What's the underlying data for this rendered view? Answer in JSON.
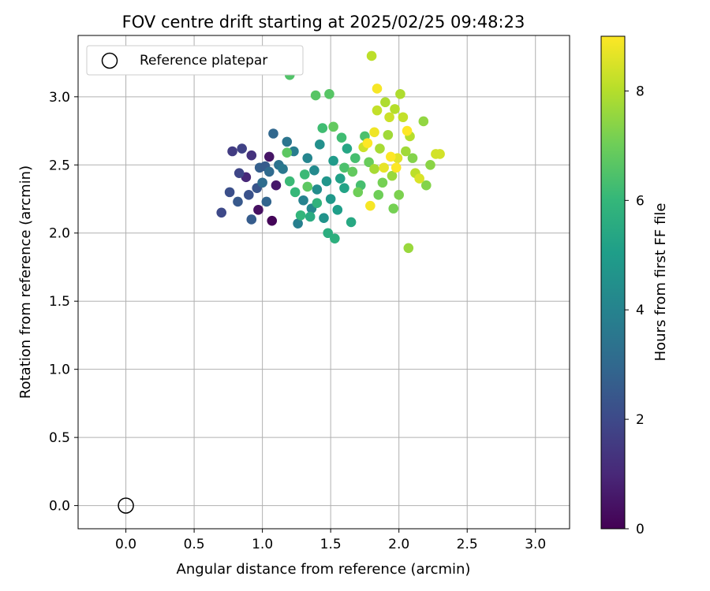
{
  "chart_data": {
    "type": "scatter",
    "title": "FOV centre drift starting at 2025/02/25 09:48:23",
    "xlabel": "Angular distance from reference (arcmin)",
    "ylabel": "Rotation from reference (arcmin)",
    "xlim": [
      -0.35,
      3.25
    ],
    "ylim": [
      -0.17,
      3.45
    ],
    "xticks": [
      "0.0",
      "0.5",
      "1.0",
      "1.5",
      "2.0",
      "2.5",
      "3.0"
    ],
    "yticks": [
      "0.0",
      "0.5",
      "1.0",
      "1.5",
      "2.0",
      "2.5",
      "3.0"
    ],
    "grid": true,
    "legend": {
      "placement": "upper-left",
      "entries": [
        "Reference platepar"
      ]
    },
    "reference": {
      "x": 0.0,
      "y": 0.0,
      "marker": "hollow-circle"
    },
    "colorbar": {
      "label": "Hours from first FF file",
      "range": [
        0,
        9
      ],
      "ticks": [
        "0",
        "2",
        "4",
        "6",
        "8"
      ],
      "colormap": "viridis",
      "colors": [
        "#440154",
        "#482878",
        "#3e4989",
        "#31688e",
        "#26828e",
        "#1f9e89",
        "#35b779",
        "#6ece58",
        "#b5de2b",
        "#fde725"
      ]
    },
    "series": [
      {
        "points": [
          [
            1.07,
            2.09,
            0.1
          ],
          [
            0.97,
            2.17,
            0.4
          ],
          [
            1.1,
            2.35,
            0.6
          ],
          [
            1.05,
            2.56,
            0.5
          ],
          [
            0.88,
            2.41,
            1.0
          ],
          [
            0.92,
            2.57,
            1.3
          ],
          [
            0.78,
            2.6,
            1.6
          ],
          [
            0.83,
            2.44,
            1.9
          ],
          [
            0.85,
            2.62,
            1.8
          ],
          [
            0.7,
            2.15,
            2.0
          ],
          [
            0.76,
            2.3,
            2.2
          ],
          [
            0.82,
            2.23,
            2.5
          ],
          [
            0.9,
            2.28,
            2.3
          ],
          [
            0.96,
            2.33,
            2.4
          ],
          [
            0.92,
            2.1,
            2.6
          ],
          [
            0.98,
            2.48,
            2.7
          ],
          [
            1.02,
            2.49,
            2.6
          ],
          [
            1.03,
            2.23,
            2.9
          ],
          [
            1.08,
            2.73,
            3.0
          ],
          [
            1.0,
            2.37,
            3.2
          ],
          [
            1.05,
            2.45,
            3.1
          ],
          [
            1.12,
            2.5,
            3.4
          ],
          [
            1.15,
            2.47,
            3.6
          ],
          [
            1.18,
            2.67,
            3.5
          ],
          [
            1.23,
            2.6,
            3.8
          ],
          [
            1.26,
            2.07,
            3.9
          ],
          [
            1.3,
            2.24,
            4.0
          ],
          [
            1.33,
            2.55,
            4.1
          ],
          [
            1.36,
            2.18,
            4.2
          ],
          [
            1.38,
            2.46,
            4.3
          ],
          [
            1.4,
            2.32,
            4.4
          ],
          [
            1.42,
            2.65,
            4.5
          ],
          [
            1.45,
            2.11,
            4.6
          ],
          [
            1.47,
            2.38,
            4.7
          ],
          [
            1.5,
            2.25,
            4.8
          ],
          [
            1.52,
            2.53,
            4.9
          ],
          [
            1.55,
            2.17,
            5.0
          ],
          [
            1.57,
            2.4,
            5.1
          ],
          [
            1.6,
            2.33,
            5.2
          ],
          [
            1.62,
            2.62,
            5.3
          ],
          [
            1.65,
            2.08,
            5.4
          ],
          [
            1.35,
            2.12,
            5.5
          ],
          [
            1.48,
            2.0,
            5.6
          ],
          [
            1.53,
            1.96,
            5.7
          ],
          [
            1.4,
            2.22,
            5.8
          ],
          [
            1.28,
            2.13,
            5.9
          ],
          [
            1.24,
            2.3,
            6.0
          ],
          [
            1.2,
            2.38,
            6.1
          ],
          [
            1.31,
            2.43,
            6.1
          ],
          [
            1.44,
            2.77,
            6.2
          ],
          [
            1.58,
            2.7,
            6.2
          ],
          [
            1.68,
            2.55,
            6.3
          ],
          [
            1.72,
            2.35,
            6.3
          ],
          [
            1.75,
            2.71,
            6.4
          ],
          [
            1.6,
            2.48,
            6.4
          ],
          [
            1.2,
            3.16,
            6.5
          ],
          [
            1.39,
            3.01,
            6.6
          ],
          [
            1.49,
            3.02,
            6.6
          ],
          [
            1.33,
            2.34,
            6.7
          ],
          [
            1.18,
            2.59,
            6.7
          ],
          [
            1.52,
            2.78,
            6.8
          ],
          [
            1.66,
            2.45,
            6.8
          ],
          [
            1.78,
            2.52,
            6.9
          ],
          [
            1.7,
            2.3,
            7.0
          ],
          [
            1.85,
            2.28,
            7.0
          ],
          [
            1.96,
            2.18,
            7.1
          ],
          [
            1.88,
            2.37,
            7.1
          ],
          [
            2.0,
            2.28,
            7.2
          ],
          [
            2.1,
            2.55,
            7.3
          ],
          [
            2.2,
            2.35,
            7.3
          ],
          [
            2.23,
            2.5,
            7.4
          ],
          [
            2.18,
            2.82,
            7.5
          ],
          [
            2.07,
            1.89,
            7.6
          ],
          [
            1.95,
            2.42,
            7.6
          ],
          [
            2.05,
            2.6,
            7.7
          ],
          [
            1.92,
            2.72,
            7.7
          ],
          [
            1.86,
            2.62,
            7.8
          ],
          [
            1.82,
            2.47,
            7.8
          ],
          [
            1.9,
            2.96,
            7.9
          ],
          [
            2.01,
            3.02,
            7.9
          ],
          [
            1.97,
            2.91,
            8.0
          ],
          [
            2.08,
            2.71,
            8.0
          ],
          [
            2.12,
            2.44,
            8.1
          ],
          [
            1.8,
            3.3,
            8.1
          ],
          [
            1.84,
            2.9,
            8.2
          ],
          [
            2.03,
            2.85,
            8.2
          ],
          [
            1.74,
            2.63,
            8.3
          ],
          [
            1.93,
            2.85,
            8.3
          ],
          [
            2.27,
            2.58,
            8.4
          ],
          [
            2.3,
            2.58,
            8.4
          ],
          [
            2.15,
            2.4,
            8.5
          ],
          [
            1.99,
            2.55,
            8.6
          ],
          [
            1.89,
            2.48,
            8.7
          ],
          [
            1.82,
            2.74,
            8.8
          ],
          [
            1.79,
            2.2,
            8.9
          ],
          [
            1.84,
            3.06,
            8.9
          ],
          [
            1.98,
            2.48,
            9.0
          ],
          [
            2.06,
            2.75,
            9.0
          ],
          [
            1.77,
            2.66,
            9.0
          ],
          [
            1.94,
            2.56,
            9.0
          ]
        ]
      }
    ]
  }
}
